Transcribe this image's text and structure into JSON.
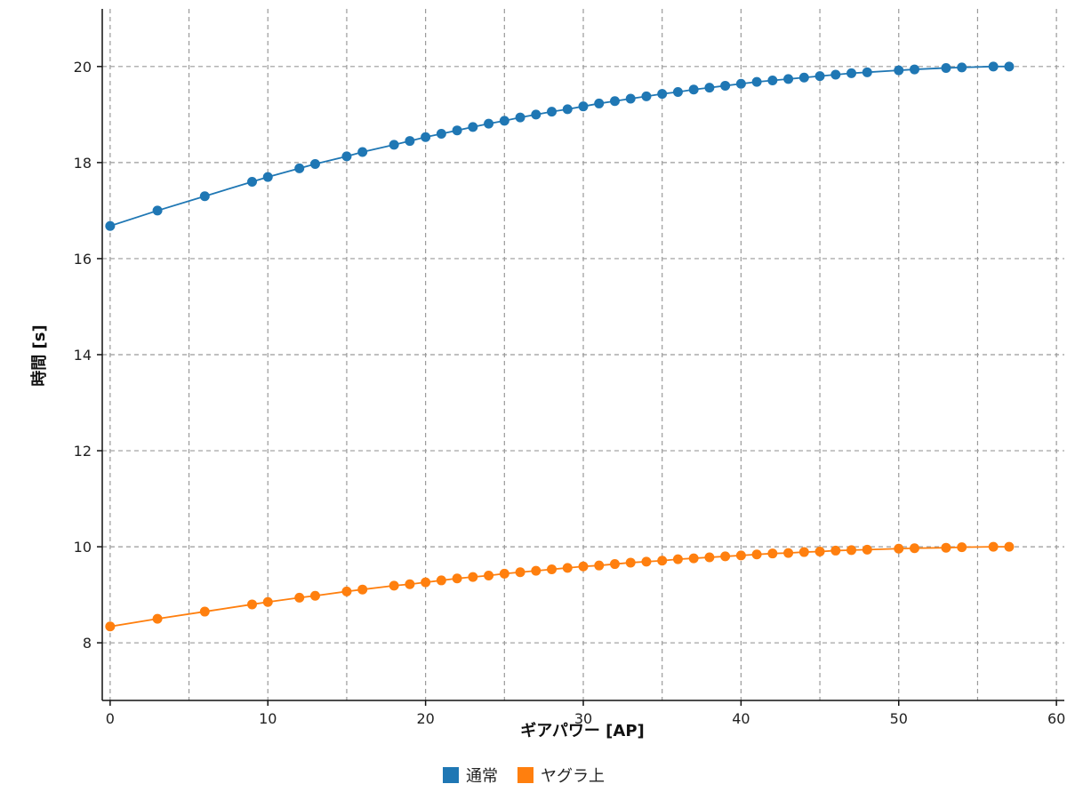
{
  "chart_data": {
    "type": "line",
    "xlabel": "ギアパワー [AP]",
    "ylabel": "時間 [s]",
    "xlim": [
      -0.5,
      60.5
    ],
    "ylim": [
      6.8,
      21.2
    ],
    "xticks": [
      0,
      10,
      20,
      30,
      40,
      50,
      60
    ],
    "yticks": [
      8,
      10,
      12,
      14,
      16,
      18,
      20
    ],
    "x_grid": [
      0,
      5,
      10,
      15,
      20,
      25,
      30,
      35,
      40,
      45,
      50,
      55,
      60
    ],
    "y_grid": [
      8,
      10,
      12,
      14,
      16,
      18,
      20
    ],
    "grid": true,
    "legend_position": "bottom-center",
    "x": [
      0,
      3,
      6,
      9,
      10,
      12,
      13,
      15,
      16,
      18,
      19,
      20,
      21,
      22,
      23,
      24,
      25,
      26,
      27,
      28,
      29,
      30,
      31,
      32,
      33,
      34,
      35,
      36,
      37,
      38,
      39,
      40,
      41,
      42,
      43,
      44,
      45,
      46,
      47,
      48,
      50,
      51,
      53,
      54,
      56,
      57
    ],
    "series": [
      {
        "name": "通常",
        "color": "#1f77b4",
        "values": [
          16.68,
          17.0,
          17.3,
          17.6,
          17.7,
          17.88,
          17.97,
          18.13,
          18.22,
          18.37,
          18.45,
          18.53,
          18.6,
          18.67,
          18.74,
          18.81,
          18.87,
          18.94,
          19.0,
          19.06,
          19.11,
          19.17,
          19.23,
          19.28,
          19.33,
          19.38,
          19.43,
          19.47,
          19.52,
          19.56,
          19.6,
          19.64,
          19.68,
          19.71,
          19.74,
          19.77,
          19.8,
          19.83,
          19.86,
          19.88,
          19.92,
          19.94,
          19.97,
          19.98,
          20.0,
          20.0
        ]
      },
      {
        "name": "ヤグラ上",
        "color": "#ff7f0e",
        "values": [
          8.34,
          8.5,
          8.65,
          8.8,
          8.85,
          8.94,
          8.98,
          9.07,
          9.11,
          9.19,
          9.22,
          9.26,
          9.3,
          9.34,
          9.37,
          9.4,
          9.44,
          9.47,
          9.5,
          9.53,
          9.56,
          9.59,
          9.61,
          9.64,
          9.67,
          9.69,
          9.71,
          9.74,
          9.76,
          9.78,
          9.8,
          9.82,
          9.84,
          9.86,
          9.87,
          9.89,
          9.9,
          9.92,
          9.93,
          9.94,
          9.96,
          9.97,
          9.98,
          9.99,
          10.0,
          10.0
        ]
      }
    ]
  }
}
